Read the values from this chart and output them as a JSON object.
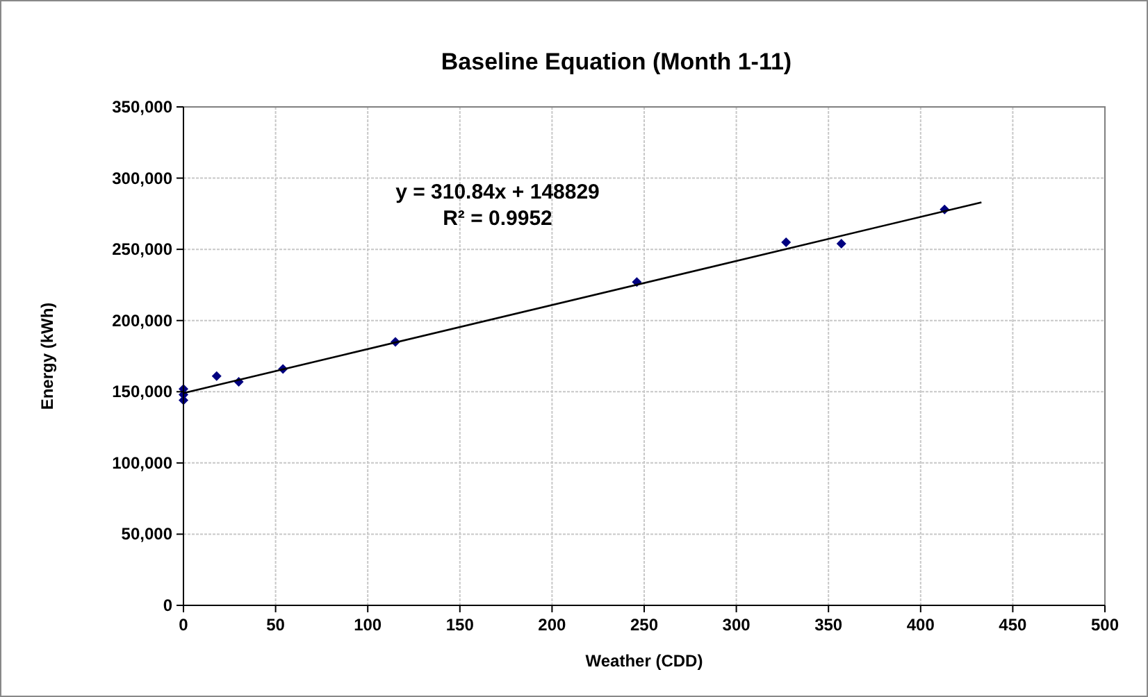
{
  "chart_data": {
    "type": "scatter",
    "title": "Baseline Equation (Month 1-11)",
    "xlabel": "Weather (CDD)",
    "ylabel": "Energy (kWh)",
    "annotations": [
      "y = 310.84x + 148829",
      "R² = 0.9952"
    ],
    "series": [
      {
        "color": "#000080",
        "marker": "diamond",
        "x": [
          0,
          0,
          0,
          18,
          30,
          54,
          115,
          246,
          327,
          357,
          413
        ],
        "values": [
          152000,
          148000,
          144000,
          161000,
          157000,
          166000,
          185000,
          227000,
          255000,
          254000,
          278000
        ]
      },
      {
        "type": "line",
        "color": "#000000",
        "marker": "none",
        "line_style": "solid",
        "x": [
          0,
          433
        ],
        "values": [
          149000,
          283000
        ]
      }
    ],
    "xlim": [
      0,
      500
    ],
    "xticks": [
      0,
      50,
      100,
      150,
      200,
      250,
      300,
      350,
      400,
      450,
      500
    ],
    "ylim": [
      0,
      350000
    ],
    "yticks": [
      {
        "value": 0,
        "label": "0"
      },
      {
        "value": 50000,
        "label": "50,000"
      },
      {
        "value": 100000,
        "label": "100,000"
      },
      {
        "value": 150000,
        "label": "150,000"
      },
      {
        "value": 200000,
        "label": "200,000"
      },
      {
        "value": 250000,
        "label": "250,000"
      },
      {
        "value": 300000,
        "label": "300,000"
      },
      {
        "value": 350000,
        "label": "350,000"
      }
    ],
    "grid": true
  }
}
